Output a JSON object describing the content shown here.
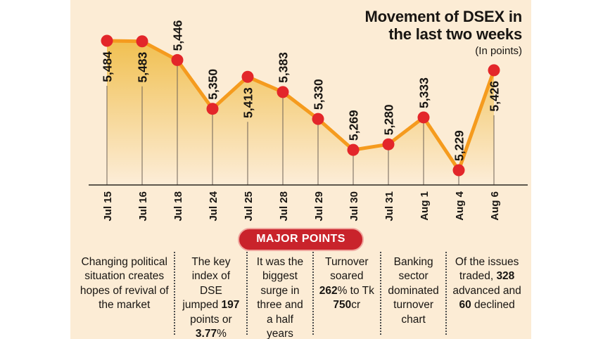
{
  "header": {
    "title_lines": [
      "Movement of DSEX in",
      "the last two weeks"
    ],
    "subtitle": "(In points)"
  },
  "chart_data": {
    "type": "line",
    "title": "Movement of DSEX in the last two weeks",
    "units_note": "(In points)",
    "x": [
      "Jul 15",
      "Jul 16",
      "Jul 18",
      "Jul 24",
      "Jul 25",
      "Jul 28",
      "Jul 29",
      "Jul 30",
      "Jul 31",
      "Aug 1",
      "Aug 4",
      "Aug 6"
    ],
    "values": [
      5484,
      5483,
      5446,
      5350,
      5413,
      5383,
      5330,
      5269,
      5280,
      5333,
      5229,
      5426
    ],
    "value_labels": [
      "5,484",
      "5,483",
      "5,446",
      "5,350",
      "5,413",
      "5,383",
      "5,330",
      "5,269",
      "5,280",
      "5,333",
      "5,229",
      "5,426"
    ],
    "label_side": [
      "below",
      "below",
      "above",
      "above",
      "below",
      "above",
      "above",
      "above",
      "above",
      "above",
      "above",
      "below"
    ],
    "ylim": [
      5229,
      5484
    ],
    "grid": false,
    "legend": false,
    "area_fill": true
  },
  "colors": {
    "panel_bg": "#fcecd5",
    "line": "#f59b1e",
    "dot": "#e3262a",
    "fill_top": "#f0bd48",
    "fill_bottom_alpha": 0,
    "stem": "#6e6257",
    "axis": "#2a2622",
    "text": "#181512",
    "badge_bg": "#c9232b",
    "badge_border": "#f0a79f",
    "badge_text": "#ffffff"
  },
  "major_points": {
    "badge_label": "MAJOR POINTS",
    "items": [
      {
        "segments": [
          {
            "text": "Changing political situation creates hopes of revival of the market",
            "bold": false
          }
        ]
      },
      {
        "segments": [
          {
            "text": "The key index of DSE jumped ",
            "bold": false
          },
          {
            "text": "197",
            "bold": true
          },
          {
            "text": " points or ",
            "bold": false
          },
          {
            "text": "3.77",
            "bold": true
          },
          {
            "text": "%",
            "bold": false
          }
        ]
      },
      {
        "segments": [
          {
            "text": "It was the biggest surge in three and a half years",
            "bold": false
          }
        ]
      },
      {
        "segments": [
          {
            "text": "Turnover soared ",
            "bold": false
          },
          {
            "text": "262",
            "bold": true
          },
          {
            "text": "% to Tk ",
            "bold": false
          },
          {
            "text": "750",
            "bold": true
          },
          {
            "text": "cr",
            "bold": false
          }
        ]
      },
      {
        "segments": [
          {
            "text": "Banking sector dominated turnover chart",
            "bold": false
          }
        ]
      },
      {
        "segments": [
          {
            "text": "Of the issues traded, ",
            "bold": false
          },
          {
            "text": "328",
            "bold": true
          },
          {
            "text": " advanced and ",
            "bold": false
          },
          {
            "text": "60",
            "bold": true
          },
          {
            "text": " declined",
            "bold": false
          }
        ]
      }
    ]
  }
}
